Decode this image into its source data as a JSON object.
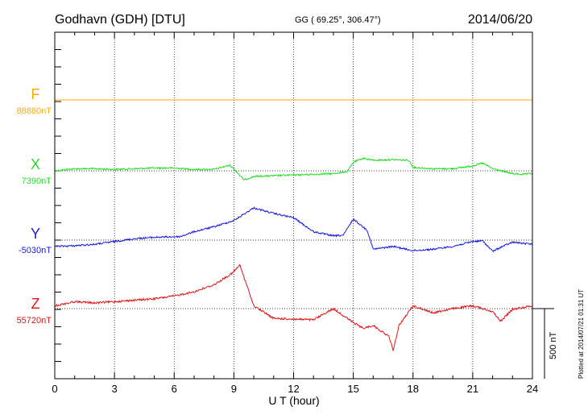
{
  "header": {
    "station": "Godhavn (GDH)  [DTU]",
    "coords": "GG ( 69.25°, 306.47°)",
    "date": "2014/06/20"
  },
  "footer": {
    "plotted": "Plotted at 2014/07/21 01:31  UT",
    "scale_label": "500 nT"
  },
  "colors": {
    "F": "#ffaa00",
    "X": "#22dd22",
    "Y": "#1a1adf",
    "Z": "#e01515",
    "axis": "#000000"
  },
  "chart_data": {
    "type": "line",
    "xlabel": "U T (hour)",
    "ylabel": "",
    "xlim": [
      0,
      24
    ],
    "x_ticks": [
      "0",
      "3",
      "6",
      "9",
      "12",
      "15",
      "18",
      "21",
      "24"
    ],
    "grid": true,
    "scale_bar_nT": 500,
    "series": [
      {
        "name": "F",
        "baseline": "88880nT",
        "x": [
          0,
          24
        ],
        "y": [
          0,
          0
        ]
      },
      {
        "name": "X",
        "baseline": "7390nT",
        "x": [
          0,
          1,
          2,
          3,
          4,
          5,
          6,
          7,
          8,
          8.8,
          9.1,
          9.5,
          10,
          11,
          12,
          13,
          14,
          14.7,
          15,
          15.5,
          16,
          17,
          17.8,
          18,
          19,
          20,
          21,
          21.5,
          22,
          23,
          23.5,
          24
        ],
        "y": [
          0,
          15,
          15,
          10,
          15,
          20,
          20,
          10,
          10,
          40,
          0,
          -65,
          -40,
          -35,
          -30,
          -25,
          -20,
          -5,
          60,
          90,
          75,
          80,
          75,
          25,
          15,
          15,
          35,
          55,
          15,
          -20,
          -25,
          -20
        ]
      },
      {
        "name": "Y",
        "baseline": "-5030nT",
        "x": [
          0,
          1,
          2,
          3,
          4,
          5,
          6.3,
          7,
          8,
          9,
          10,
          11,
          12,
          13,
          14,
          14.5,
          15,
          15.7,
          16,
          17,
          18,
          19,
          20,
          21,
          21.5,
          22,
          22.5,
          23,
          24
        ],
        "y": [
          -45,
          -40,
          -30,
          -10,
          10,
          20,
          25,
          60,
          95,
          140,
          230,
          190,
          160,
          60,
          30,
          35,
          150,
          70,
          -65,
          -45,
          -75,
          -65,
          -45,
          -10,
          -5,
          -80,
          -45,
          -15,
          -30
        ]
      },
      {
        "name": "Z",
        "baseline": "55720nT",
        "x": [
          0,
          1,
          2,
          3,
          4,
          5,
          6,
          7,
          8,
          8.9,
          9.3,
          10,
          11,
          12,
          13,
          14,
          15,
          15.5,
          16,
          16.8,
          17,
          17.3,
          18,
          19,
          20,
          21,
          22,
          22.4,
          23,
          24
        ],
        "y": [
          20,
          50,
          40,
          50,
          60,
          70,
          90,
          120,
          170,
          250,
          310,
          20,
          -70,
          -75,
          -80,
          0,
          -100,
          -140,
          -120,
          -200,
          -300,
          -120,
          20,
          -30,
          0,
          20,
          -20,
          -90,
          -5,
          20
        ]
      }
    ]
  }
}
